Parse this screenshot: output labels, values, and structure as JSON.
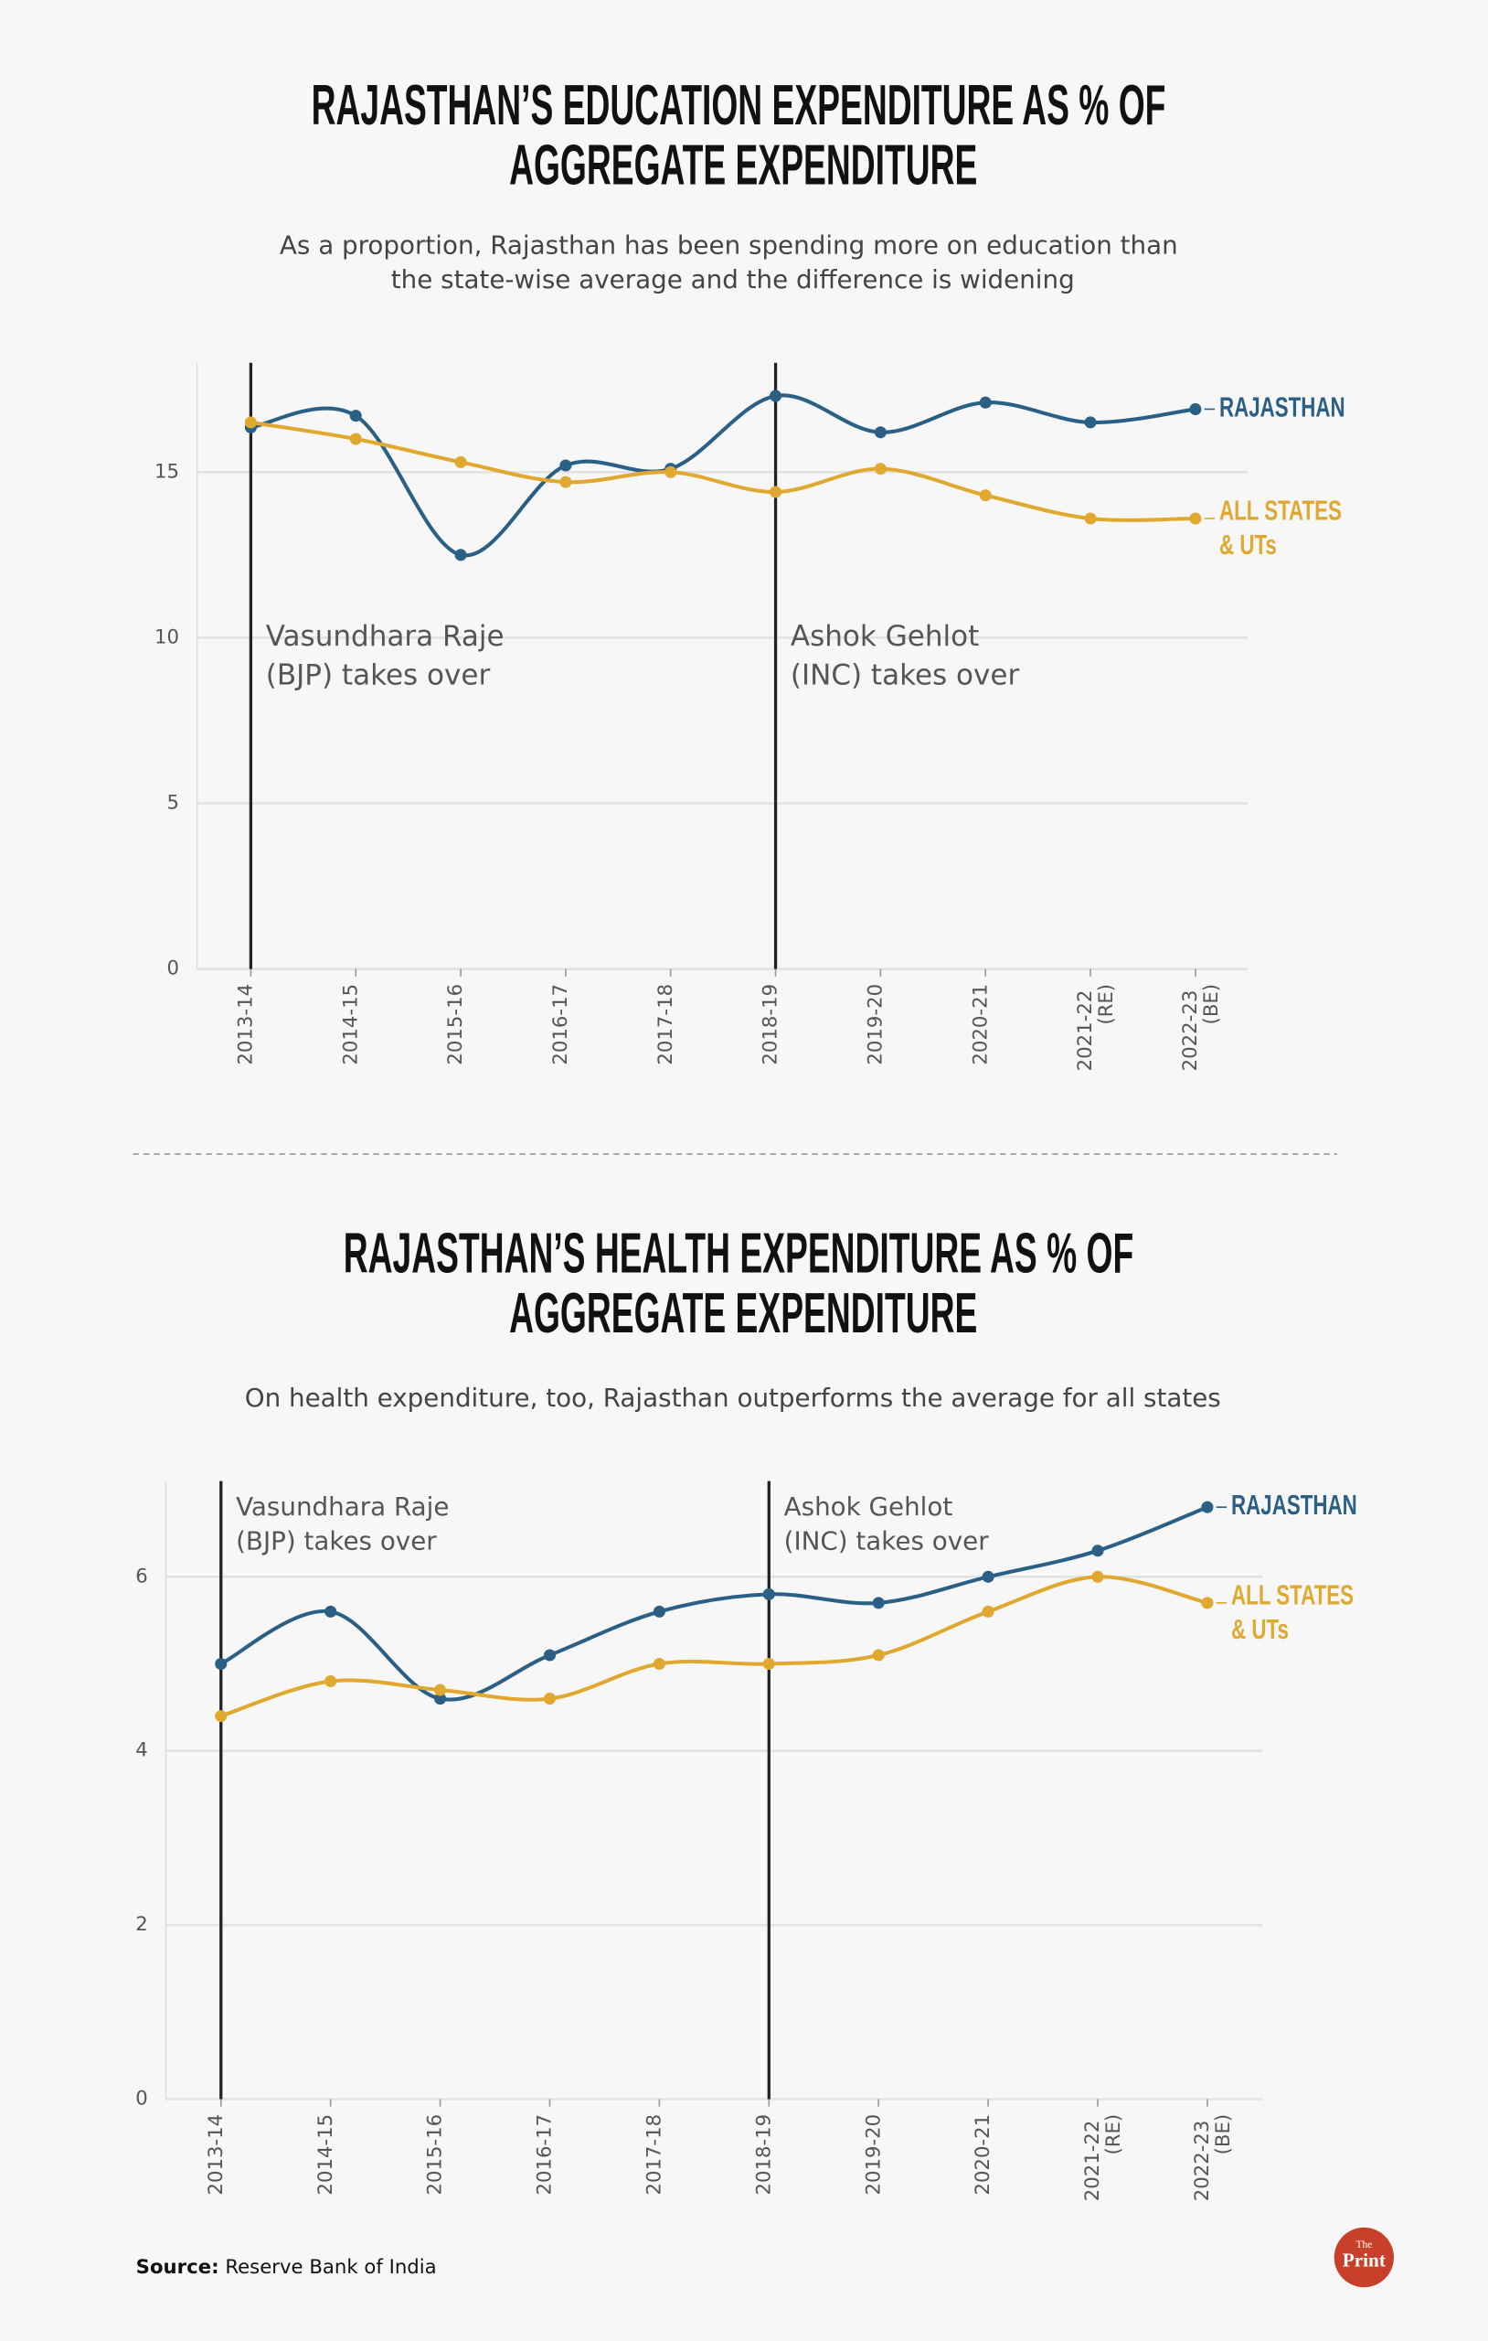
{
  "chart_data": [
    {
      "type": "line",
      "title": "RAJASTHAN’S EDUCATION EXPENDITURE AS % OF AGGREGATE EXPENDITURE",
      "subtitle": "As a proportion, Rajasthan has been spending more on education than the state-wise average and the difference is widening",
      "categories": [
        "2013-14",
        "2014-15",
        "2015-16",
        "2016-17",
        "2017-18",
        "2018-19",
        "2019-20",
        "2020-21",
        "2021-22 (RE)",
        "2022-23 (BE)"
      ],
      "series": [
        {
          "name": "RAJASTHAN",
          "color": "#2a5f86",
          "values": [
            16.35,
            16.7,
            12.5,
            15.2,
            15.1,
            17.3,
            16.2,
            17.1,
            16.5,
            16.9
          ]
        },
        {
          "name": "ALL STATES & UTs",
          "color": "#e0a82e",
          "values": [
            16.5,
            16.0,
            15.3,
            14.7,
            15.0,
            14.4,
            15.1,
            14.3,
            13.6,
            13.6
          ]
        }
      ],
      "ylim": [
        0,
        18.3
      ],
      "yticks": [
        0,
        5,
        10,
        15
      ],
      "grid": true,
      "annotations": [
        {
          "x": "2013-14",
          "text": [
            "Vasundhara Raje",
            "(BJP) takes over"
          ]
        },
        {
          "x": "2018-19",
          "text": [
            "Ashok Gehlot",
            "(INC) takes over"
          ]
        }
      ]
    },
    {
      "type": "line",
      "title": "RAJASTHAN’S HEALTH EXPENDITURE AS % OF AGGREGATE EXPENDITURE",
      "subtitle": "On health expenditure, too, Rajasthan outperforms the average for all states",
      "categories": [
        "2013-14",
        "2014-15",
        "2015-16",
        "2016-17",
        "2017-18",
        "2018-19",
        "2019-20",
        "2020-21",
        "2021-22 (RE)",
        "2022-23 (BE)"
      ],
      "series": [
        {
          "name": "RAJASTHAN",
          "color": "#2a5f86",
          "values": [
            5.0,
            5.6,
            4.6,
            5.1,
            5.6,
            5.8,
            5.7,
            6.0,
            6.3,
            6.8
          ]
        },
        {
          "name": "ALL STATES & UTs",
          "color": "#e0a82e",
          "values": [
            4.4,
            4.8,
            4.7,
            4.6,
            5.0,
            5.0,
            5.1,
            5.6,
            6.0,
            5.7
          ]
        }
      ],
      "ylim": [
        0,
        7.1
      ],
      "yticks": [
        0,
        2,
        4,
        6
      ],
      "grid": true,
      "annotations": [
        {
          "x": "2013-14",
          "text": [
            "Vasundhara Raje",
            "(BJP) takes over"
          ]
        },
        {
          "x": "2018-19",
          "text": [
            "Ashok Gehlot",
            "(INC) takes over"
          ]
        }
      ]
    }
  ],
  "source": {
    "label": "Source:",
    "text": "Reserve Bank of India"
  },
  "logo": {
    "top": "The",
    "bottom": "Print"
  }
}
